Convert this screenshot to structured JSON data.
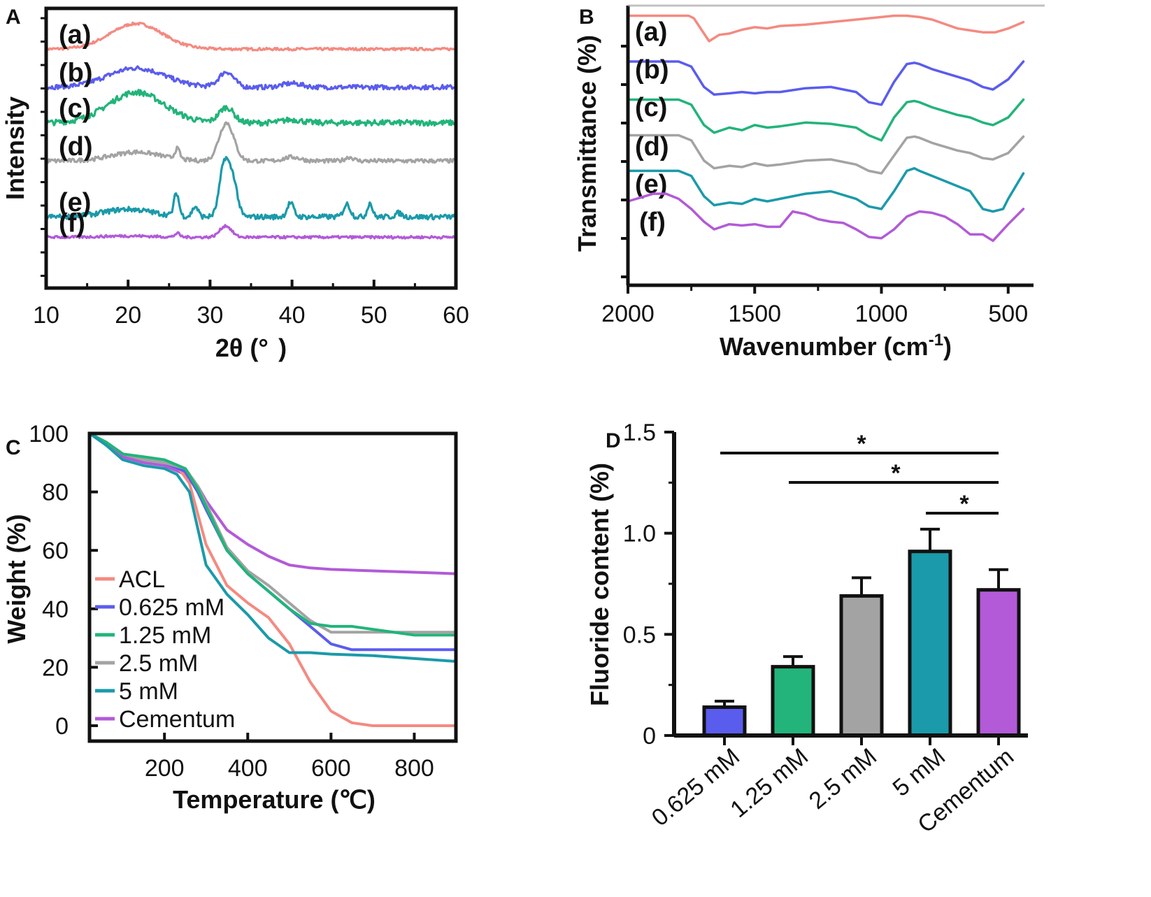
{
  "colors": {
    "a": "#f48a80",
    "b": "#5a5cee",
    "c": "#22b47a",
    "d": "#a3a3a3",
    "e": "#1a9aaa",
    "f": "#b25ad8",
    "axis": "#111111"
  },
  "chart_data": [
    {
      "panel": "A",
      "type": "line",
      "xlabel": "2θ (°  )",
      "ylabel": "Intensity",
      "xlim": [
        10,
        60
      ],
      "xticks": [
        "10",
        "20",
        "30",
        "40",
        "50",
        "60"
      ],
      "ylim": [
        0,
        11
      ],
      "series": [
        {
          "name": "(a)",
          "color": "a",
          "baseline": 9.4,
          "peaks": [
            [
              21,
              1.0,
              3.2
            ]
          ],
          "noise": 0.05
        },
        {
          "name": "(b)",
          "color": "b",
          "baseline": 7.9,
          "peaks": [
            [
              21,
              0.75,
              3.5
            ],
            [
              32,
              0.6,
              0.9
            ],
            [
              40,
              0.15,
              1.2
            ]
          ],
          "noise": 0.09
        },
        {
          "name": "(c)",
          "color": "c",
          "baseline": 6.5,
          "peaks": [
            [
              21,
              1.2,
              3.4
            ],
            [
              32,
              0.6,
              0.9
            ],
            [
              40,
              0.12,
              1.2
            ]
          ],
          "noise": 0.11
        },
        {
          "name": "(d)",
          "color": "d",
          "baseline": 5.0,
          "peaks": [
            [
              21,
              0.35,
              3
            ],
            [
              26,
              0.4,
              0.3
            ],
            [
              32,
              1.5,
              0.9
            ],
            [
              40,
              0.15,
              1
            ],
            [
              47,
              0.15,
              0.5
            ]
          ],
          "noise": 0.08
        },
        {
          "name": "(e)",
          "color": "e",
          "baseline": 2.8,
          "peaks": [
            [
              20,
              0.3,
              3
            ],
            [
              25.9,
              0.9,
              0.3
            ],
            [
              28.2,
              0.4,
              0.35
            ],
            [
              31.8,
              2.2,
              0.6
            ],
            [
              32.9,
              1.2,
              0.5
            ],
            [
              39.8,
              0.55,
              0.4
            ],
            [
              46.7,
              0.5,
              0.4
            ],
            [
              49.5,
              0.55,
              0.3
            ],
            [
              53,
              0.15,
              0.4
            ]
          ],
          "noise": 0.1
        },
        {
          "name": "(f)",
          "color": "f",
          "baseline": 2.0,
          "peaks": [
            [
              26,
              0.15,
              0.3
            ],
            [
              31.9,
              0.45,
              0.7
            ],
            [
              20,
              0.05,
              3
            ]
          ],
          "noise": 0.05
        }
      ]
    },
    {
      "panel": "B",
      "type": "line",
      "xlabel": "Wavenumber (cm",
      "xlabel_sup": "-1",
      "xlabel_tail": ")",
      "ylabel": "Transmittance (%)",
      "xlim": [
        2000,
        400
      ],
      "xticks": [
        "2000",
        "1500",
        "1000",
        "500"
      ],
      "ylim": [
        0,
        11
      ],
      "series": [
        {
          "name": "(a)",
          "color": "a",
          "x": [
            2000,
            1760,
            1740,
            1700,
            1680,
            1640,
            1600,
            1550,
            1500,
            1450,
            1400,
            1300,
            1200,
            1100,
            1000,
            950,
            900,
            850,
            800,
            700,
            600,
            550,
            500,
            440
          ],
          "y": [
            10.6,
            10.6,
            10.5,
            9.9,
            9.6,
            9.85,
            9.9,
            10.05,
            10.15,
            10.1,
            10.2,
            10.25,
            10.35,
            10.45,
            10.55,
            10.6,
            10.6,
            10.55,
            10.45,
            10.1,
            9.95,
            9.95,
            10.1,
            10.35
          ]
        },
        {
          "name": "(b)",
          "color": "b",
          "x": [
            2000,
            1800,
            1750,
            1700,
            1660,
            1600,
            1550,
            1500,
            1450,
            1400,
            1300,
            1200,
            1100,
            1050,
            1000,
            950,
            900,
            870,
            850,
            800,
            700,
            650,
            600,
            560,
            500,
            440
          ],
          "y": [
            8.8,
            8.8,
            8.6,
            7.8,
            7.5,
            7.55,
            7.6,
            7.55,
            7.6,
            7.6,
            7.75,
            7.8,
            7.6,
            7.2,
            7.1,
            8.0,
            8.7,
            8.75,
            8.7,
            8.5,
            8.2,
            8.05,
            7.8,
            7.7,
            8.1,
            8.8
          ]
        },
        {
          "name": "(c)",
          "color": "c",
          "x": [
            2000,
            1800,
            1750,
            1700,
            1660,
            1600,
            1550,
            1500,
            1450,
            1400,
            1300,
            1200,
            1100,
            1050,
            1000,
            950,
            900,
            870,
            850,
            800,
            700,
            650,
            600,
            560,
            500,
            440
          ],
          "y": [
            7.3,
            7.3,
            7.1,
            6.3,
            6.0,
            6.2,
            6.1,
            6.3,
            6.2,
            6.25,
            6.4,
            6.35,
            6.2,
            5.9,
            5.7,
            6.6,
            7.2,
            7.25,
            7.2,
            7.0,
            6.7,
            6.6,
            6.4,
            6.3,
            6.6,
            7.3
          ]
        },
        {
          "name": "(d)",
          "color": "d",
          "x": [
            2000,
            1800,
            1750,
            1700,
            1660,
            1600,
            1550,
            1500,
            1450,
            1400,
            1300,
            1200,
            1100,
            1050,
            1000,
            950,
            900,
            870,
            850,
            800,
            700,
            650,
            600,
            560,
            500,
            440
          ],
          "y": [
            5.9,
            5.9,
            5.7,
            4.9,
            4.6,
            4.7,
            4.65,
            4.8,
            4.7,
            4.75,
            4.9,
            4.95,
            4.75,
            4.5,
            4.4,
            5.1,
            5.8,
            5.85,
            5.8,
            5.6,
            5.3,
            5.2,
            5.0,
            4.95,
            5.2,
            5.85
          ]
        },
        {
          "name": "(e)",
          "color": "e",
          "x": [
            2000,
            1800,
            1750,
            1700,
            1660,
            1600,
            1550,
            1500,
            1450,
            1400,
            1300,
            1200,
            1100,
            1050,
            1000,
            950,
            900,
            870,
            850,
            800,
            700,
            650,
            600,
            560,
            520,
            500,
            440
          ],
          "y": [
            4.5,
            4.5,
            4.3,
            3.5,
            3.15,
            3.25,
            3.2,
            3.4,
            3.3,
            3.4,
            3.6,
            3.7,
            3.4,
            3.1,
            3.0,
            3.7,
            4.5,
            4.6,
            4.5,
            4.3,
            3.9,
            3.7,
            3.0,
            2.9,
            3.0,
            3.4,
            4.4
          ]
        },
        {
          "name": "(f)",
          "color": "f",
          "x": [
            2000,
            1900,
            1850,
            1800,
            1750,
            1700,
            1660,
            1600,
            1550,
            1500,
            1450,
            1400,
            1350,
            1300,
            1250,
            1200,
            1150,
            1100,
            1050,
            1000,
            950,
            900,
            850,
            800,
            750,
            700,
            650,
            600,
            560,
            500,
            440
          ],
          "y": [
            3.3,
            3.6,
            3.6,
            3.4,
            3.0,
            2.5,
            2.2,
            2.4,
            2.35,
            2.4,
            2.3,
            2.3,
            2.9,
            2.8,
            2.6,
            2.5,
            2.45,
            2.2,
            1.9,
            1.85,
            2.2,
            2.7,
            2.9,
            2.85,
            2.7,
            2.4,
            2.0,
            2.0,
            1.75,
            2.4,
            3.0
          ]
        }
      ]
    },
    {
      "panel": "C",
      "type": "line",
      "xlabel": "Temperature (℃)",
      "ylabel": "Weight (%)",
      "xlim": [
        20,
        900
      ],
      "ylim": [
        -5,
        100
      ],
      "xticks": [
        "200",
        "400",
        "600",
        "800"
      ],
      "yticks": [
        "0",
        "20",
        "40",
        "60",
        "80",
        "100"
      ],
      "series": [
        {
          "name": "ACL",
          "color": "a",
          "x": [
            20,
            60,
            100,
            150,
            200,
            230,
            260,
            300,
            350,
            400,
            450,
            500,
            550,
            600,
            650,
            700,
            800,
            900
          ],
          "y": [
            100,
            97,
            93,
            91,
            90,
            89,
            83,
            62,
            48,
            42,
            37,
            28,
            15,
            5,
            1,
            0,
            0,
            0
          ]
        },
        {
          "name": "0.625 mM",
          "color": "b",
          "x": [
            20,
            60,
            100,
            150,
            200,
            250,
            280,
            300,
            350,
            400,
            450,
            500,
            550,
            600,
            650,
            700,
            800,
            900
          ],
          "y": [
            100,
            97,
            93,
            91,
            90,
            87,
            80,
            74,
            60,
            52,
            46,
            40,
            34,
            28,
            26,
            26,
            26,
            26
          ]
        },
        {
          "name": "1.25 mM",
          "color": "c",
          "x": [
            20,
            60,
            100,
            150,
            200,
            250,
            280,
            300,
            350,
            400,
            450,
            500,
            550,
            600,
            650,
            700,
            800,
            900
          ],
          "y": [
            100,
            97,
            93,
            92,
            91,
            88,
            81,
            75,
            60,
            52,
            46,
            40,
            35,
            34,
            34,
            33,
            31,
            31
          ]
        },
        {
          "name": "2.5 mM",
          "color": "d",
          "x": [
            20,
            60,
            100,
            150,
            200,
            250,
            280,
            300,
            350,
            400,
            450,
            500,
            550,
            600,
            650,
            700,
            800,
            900
          ],
          "y": [
            100,
            97,
            93,
            91,
            90,
            88,
            82,
            76,
            61,
            53,
            48,
            42,
            36,
            32,
            32,
            32,
            32,
            32
          ]
        },
        {
          "name": "5 mM",
          "color": "e",
          "x": [
            20,
            60,
            100,
            150,
            200,
            230,
            260,
            300,
            350,
            400,
            450,
            500,
            550,
            600,
            700,
            800,
            900
          ],
          "y": [
            100,
            96,
            91,
            89,
            88,
            86,
            80,
            55,
            45,
            38,
            30,
            25,
            25,
            24.5,
            24,
            23,
            22
          ]
        },
        {
          "name": "Cementum",
          "color": "f",
          "x": [
            20,
            60,
            100,
            150,
            200,
            250,
            280,
            300,
            350,
            400,
            450,
            500,
            550,
            600,
            700,
            800,
            900
          ],
          "y": [
            100,
            97,
            92,
            90,
            89,
            86,
            82,
            77,
            67,
            62,
            58,
            55,
            54,
            53.5,
            53,
            52.5,
            52
          ]
        }
      ]
    },
    {
      "panel": "D",
      "type": "bar",
      "ylabel": "Fluoride content (%)",
      "ylim": [
        0,
        1.5
      ],
      "yticks": [
        "0",
        "0.5",
        "1.0",
        "1.5"
      ],
      "categories": [
        "0.625 mM",
        "1.25 mM",
        "2.5 mM",
        "5 mM",
        "Cementum"
      ],
      "values": [
        0.14,
        0.34,
        0.69,
        0.91,
        0.72
      ],
      "errors": [
        0.03,
        0.05,
        0.09,
        0.11,
        0.1
      ],
      "bar_colors": [
        "b",
        "c",
        "d",
        "e",
        "f"
      ],
      "significance": [
        {
          "from": 0,
          "to": 4,
          "label": "*",
          "y": 1.4
        },
        {
          "from": 1,
          "to": 4,
          "label": "*",
          "y": 1.24
        },
        {
          "from": 3,
          "to": 4,
          "label": "*",
          "y": 1.12
        }
      ]
    }
  ]
}
